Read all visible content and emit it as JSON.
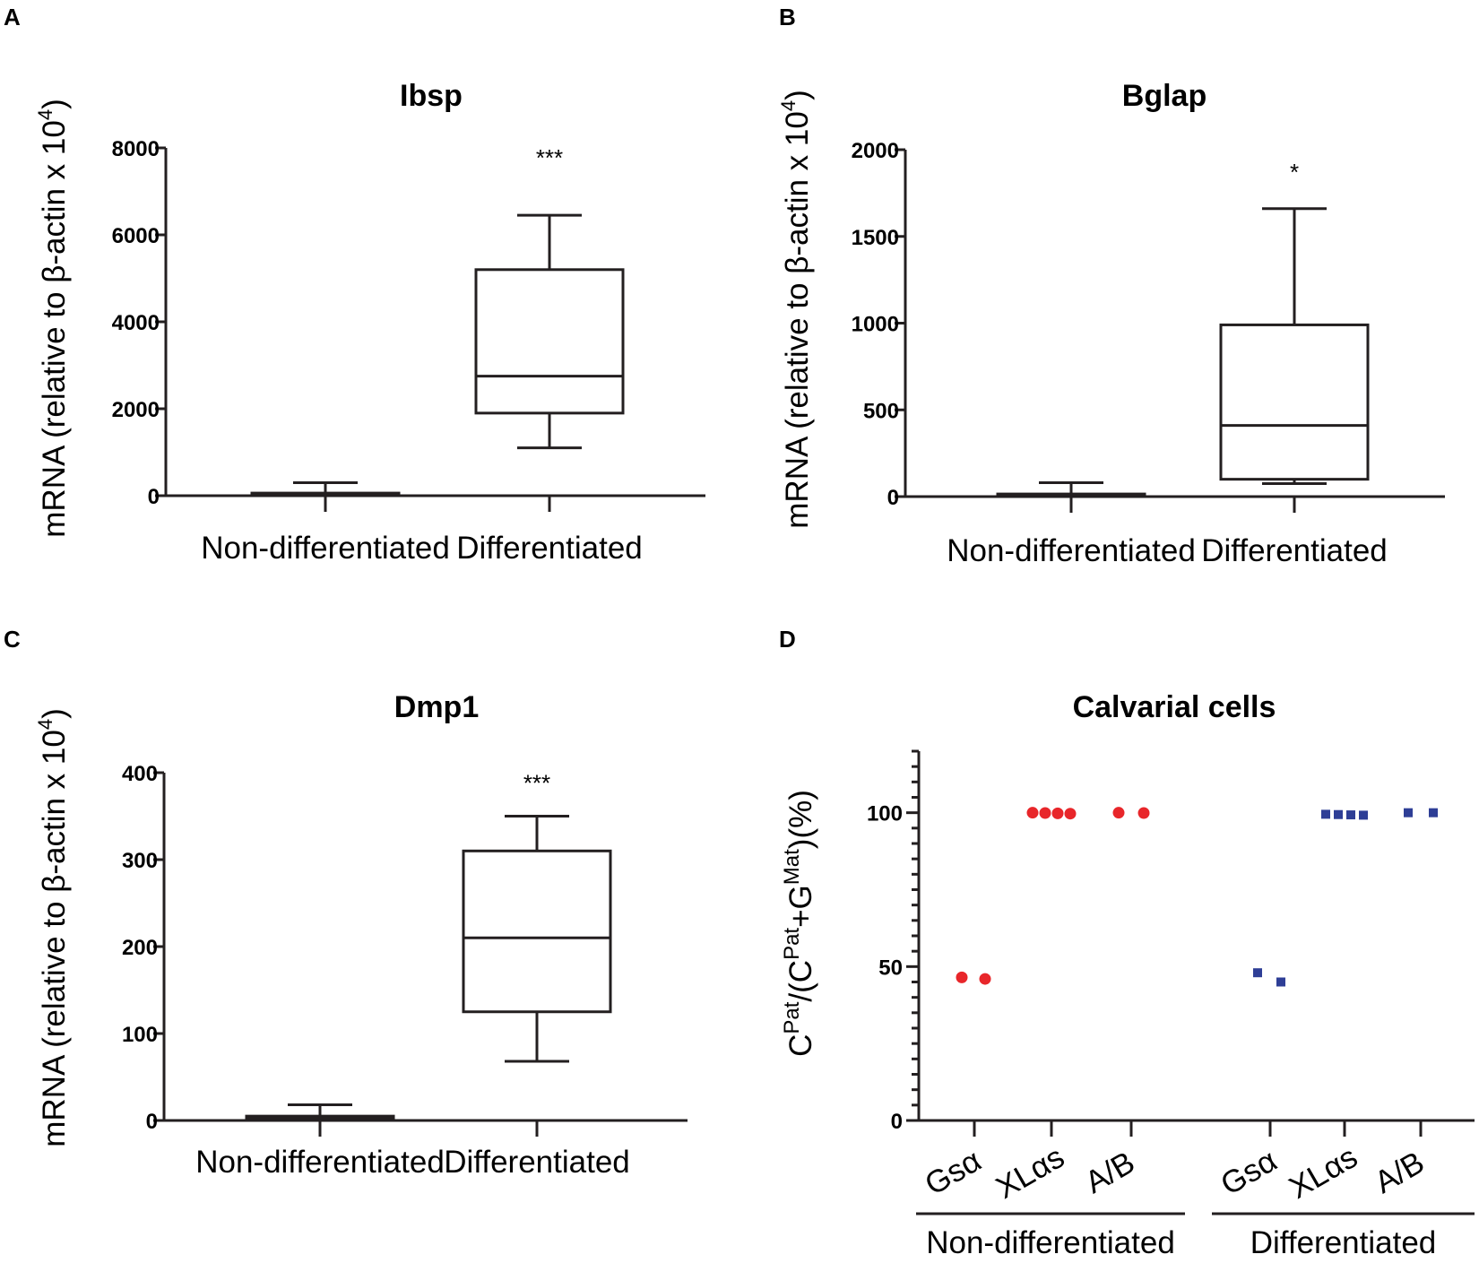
{
  "panels": [
    {
      "label": "A",
      "chart_data": {
        "type": "box",
        "title": "Ibsp",
        "ylabel_prefix": "mRNA (relative to β-actin x 10",
        "ylabel_sup": "4",
        "ylabel_suffix": ")",
        "ylim": [
          0,
          8000
        ],
        "yticks": [
          0,
          2000,
          4000,
          6000,
          8000
        ],
        "categories": [
          "Non-differentiated",
          "Differentiated"
        ],
        "boxes": [
          {
            "min": 0,
            "q1": 20,
            "median": 40,
            "q3": 60,
            "max": 300
          },
          {
            "min": 1100,
            "q1": 1900,
            "median": 2750,
            "q3": 5200,
            "max": 6450
          }
        ],
        "significance": [
          "",
          "***"
        ]
      }
    },
    {
      "label": "B",
      "chart_data": {
        "type": "box",
        "title": "Bglap",
        "ylabel_prefix": "mRNA (relative to β-actin x 10",
        "ylabel_sup": "4",
        "ylabel_suffix": ")",
        "ylim": [
          0,
          2000
        ],
        "yticks": [
          0,
          500,
          1000,
          1500,
          2000
        ],
        "categories": [
          "Non-differentiated",
          "Differentiated"
        ],
        "boxes": [
          {
            "min": 0,
            "q1": 5,
            "median": 10,
            "q3": 15,
            "max": 80
          },
          {
            "min": 75,
            "q1": 100,
            "median": 410,
            "q3": 990,
            "max": 1660
          }
        ],
        "significance": [
          "",
          "*"
        ]
      }
    },
    {
      "label": "C",
      "chart_data": {
        "type": "box",
        "title": "Dmp1",
        "ylabel_prefix": "mRNA (relative to β-actin x 10",
        "ylabel_sup": "4",
        "ylabel_suffix": ")",
        "ylim": [
          0,
          400
        ],
        "yticks": [
          0,
          100,
          200,
          300,
          400
        ],
        "categories": [
          "Non-differentiated",
          "Differentiated"
        ],
        "boxes": [
          {
            "min": 0,
            "q1": 1,
            "median": 3,
            "q3": 5,
            "max": 18
          },
          {
            "min": 68,
            "q1": 125,
            "median": 210,
            "q3": 310,
            "max": 350
          }
        ],
        "significance": [
          "",
          "***"
        ]
      }
    },
    {
      "label": "D",
      "chart_data": {
        "type": "scatter",
        "title": "Calvarial cells",
        "ylabel": "C^Pat/(C^Pat+G^Mat)(%)",
        "ylabel_parts": {
          "c1": "C",
          "sup1": "Pat",
          "mid": "/(C",
          "sup2": "Pat",
          "plus": "+G",
          "sup3": "Mat",
          "end": ")(%)"
        },
        "ylim": [
          0,
          120
        ],
        "yticks": [
          0,
          50,
          100
        ],
        "categories": [
          "Gsα",
          "XLαs",
          "A/B",
          "Gsα",
          "XLαs",
          "A/B"
        ],
        "groups": [
          "Non-differentiated",
          "Differentiated"
        ],
        "series": [
          {
            "name": "Non-differentiated",
            "color": "#e8262a",
            "marker": "circle",
            "points": [
              {
                "cat": 0,
                "y": 46.5,
                "off": -14
              },
              {
                "cat": 0,
                "y": 46,
                "off": 12
              },
              {
                "cat": 1,
                "y": 100,
                "off": -21
              },
              {
                "cat": 1,
                "y": 99.9,
                "off": -7
              },
              {
                "cat": 1,
                "y": 99.8,
                "off": 7
              },
              {
                "cat": 1,
                "y": 99.7,
                "off": 21
              },
              {
                "cat": 2,
                "y": 100,
                "off": -14
              },
              {
                "cat": 2,
                "y": 99.9,
                "off": 14
              }
            ]
          },
          {
            "name": "Differentiated",
            "color": "#2e3e96",
            "marker": "square",
            "points": [
              {
                "cat": 3,
                "y": 48,
                "off": -14
              },
              {
                "cat": 3,
                "y": 45,
                "off": 12
              },
              {
                "cat": 4,
                "y": 99.5,
                "off": -21
              },
              {
                "cat": 4,
                "y": 99.4,
                "off": -7
              },
              {
                "cat": 4,
                "y": 99.3,
                "off": 7
              },
              {
                "cat": 4,
                "y": 99.2,
                "off": 21
              },
              {
                "cat": 5,
                "y": 100,
                "off": -14
              },
              {
                "cat": 5,
                "y": 100,
                "off": 14
              }
            ]
          }
        ]
      }
    }
  ]
}
